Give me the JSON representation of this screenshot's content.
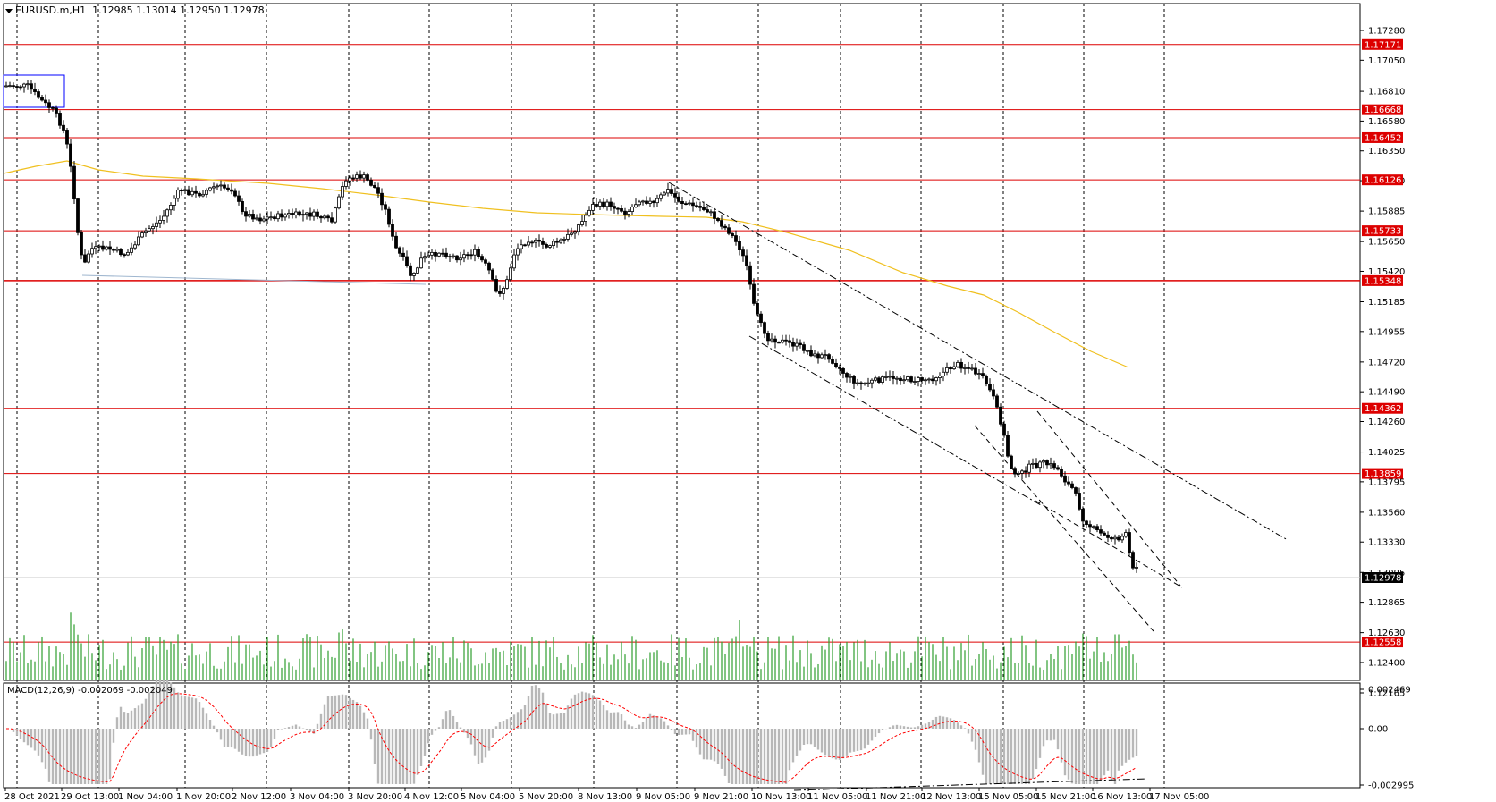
{
  "header": {
    "symbol_tf": "EURUSD.m,H1",
    "open": "1.12985",
    "high": "1.13014",
    "low": "1.12950",
    "close": "1.12978"
  },
  "macd": {
    "label": "MACD(12,26,9) -0.002069 -0.002049",
    "ticks": [
      "0.002469",
      "0.00",
      "-0.002995"
    ]
  },
  "price_axis": {
    "ticks": [
      "1.17280",
      "1.17050",
      "1.16810",
      "1.16580",
      "1.16350",
      "1.16120",
      "1.15885",
      "1.15650",
      "1.15420",
      "1.15185",
      "1.14955",
      "1.14720",
      "1.14490",
      "1.14260",
      "1.14025",
      "1.13795",
      "1.13560",
      "1.13330",
      "1.13095",
      "1.12865",
      "1.12630",
      "1.12400",
      "1.12165"
    ],
    "level_labels": [
      "1.17171",
      "1.16668",
      "1.16452",
      "1.16126",
      "1.15733",
      "1.15348",
      "1.14362",
      "1.13859",
      "1.12558"
    ],
    "current_label": "1.12978"
  },
  "time_axis": {
    "labels": [
      "28 Oct 2021",
      "29 Oct 13:00",
      "1 Nov 04:00",
      "1 Nov 20:00",
      "2 Nov 12:00",
      "3 Nov 04:00",
      "3 Nov 20:00",
      "4 Nov 12:00",
      "5 Nov 04:00",
      "5 Nov 20:00",
      "8 Nov 13:00",
      "9 Nov 05:00",
      "9 Nov 21:00",
      "10 Nov 13:00",
      "11 Nov 05:00",
      "11 Nov 21:00",
      "12 Nov 13:00",
      "15 Nov 05:00",
      "15 Nov 21:00",
      "16 Nov 13:00",
      "17 Nov 05:00"
    ]
  },
  "colors": {
    "level_line": "#dd0000",
    "candle": "#000000",
    "volume": "#2e9e2e",
    "ma": "#f0c020",
    "macd_hist": "#b8b8b8",
    "macd_signal": "#ff0000",
    "grid": "#000000",
    "rect": "#0000ff"
  }
}
